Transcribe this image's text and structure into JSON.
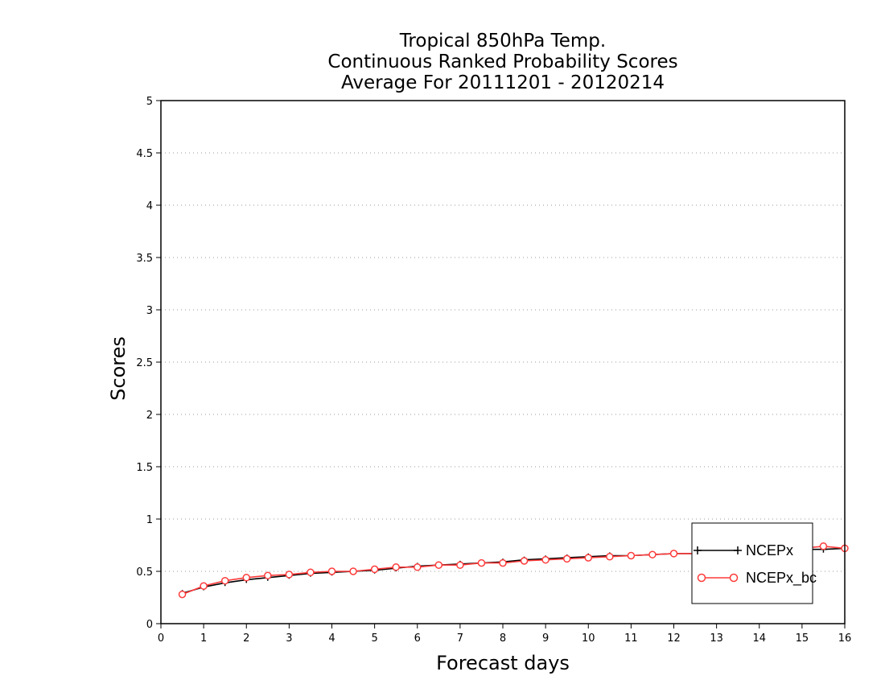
{
  "chart_data": {
    "type": "line",
    "title": [
      "Tropical 850hPa Temp.",
      "Continuous Ranked Probability Scores",
      "Average For 20111201 - 20120214"
    ],
    "xlabel": "Forecast days",
    "ylabel": "Scores",
    "xlim": [
      0,
      16
    ],
    "ylim": [
      0,
      5
    ],
    "xticks": [
      "0",
      "1",
      "2",
      "3",
      "4",
      "5",
      "6",
      "7",
      "8",
      "9",
      "10",
      "11",
      "12",
      "13",
      "14",
      "15",
      "16"
    ],
    "yticks": [
      "0",
      "0.5",
      "1",
      "1.5",
      "2",
      "2.5",
      "3",
      "3.5",
      "4",
      "4.5",
      "5"
    ],
    "grid": "horizontal-dotted",
    "legend_position": "bottom-right",
    "x": [
      0.5,
      1,
      1.5,
      2,
      2.5,
      3,
      3.5,
      4,
      4.5,
      5,
      5.5,
      6,
      6.5,
      7,
      7.5,
      8,
      8.5,
      9,
      9.5,
      10,
      10.5,
      11,
      11.5,
      12,
      12.5,
      13,
      13.5,
      14,
      14.5,
      15,
      15.5,
      16
    ],
    "series": [
      {
        "name": "NCEPx",
        "color": "#000000",
        "marker": "plus",
        "values": [
          0.29,
          0.35,
          0.39,
          0.42,
          0.44,
          0.46,
          0.48,
          0.49,
          0.5,
          0.51,
          0.53,
          0.55,
          0.56,
          0.57,
          0.58,
          0.59,
          0.61,
          0.62,
          0.63,
          0.64,
          0.65,
          0.65,
          0.66,
          0.67,
          0.67,
          0.68,
          0.69,
          0.7,
          0.7,
          0.71,
          0.71,
          0.72
        ]
      },
      {
        "name": "NCEPx_bc",
        "color": "#ff3b3b",
        "marker": "circle",
        "values": [
          0.28,
          0.36,
          0.41,
          0.44,
          0.46,
          0.47,
          0.49,
          0.5,
          0.5,
          0.52,
          0.54,
          0.54,
          0.56,
          0.56,
          0.58,
          0.58,
          0.6,
          0.61,
          0.62,
          0.63,
          0.64,
          0.65,
          0.66,
          0.67,
          0.67,
          0.68,
          0.69,
          0.7,
          0.7,
          0.72,
          0.74,
          0.72
        ]
      }
    ]
  }
}
